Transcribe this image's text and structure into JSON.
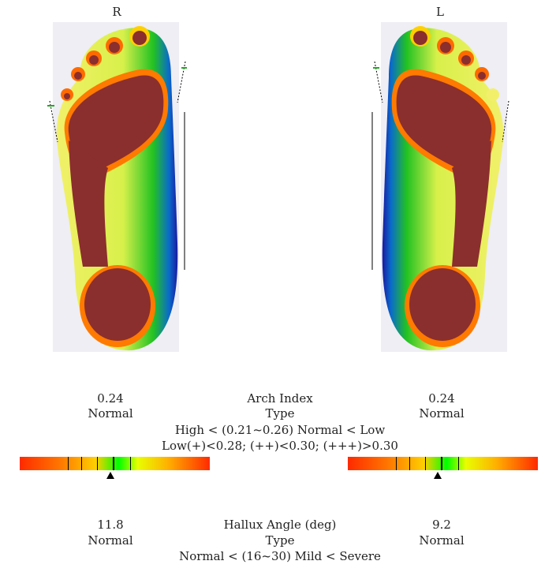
{
  "feet": {
    "right": {
      "label": "R"
    },
    "left": {
      "label": "L"
    }
  },
  "arch_index": {
    "right_value": "0.24",
    "right_type": "Normal",
    "left_value": "0.24",
    "left_type": "Normal",
    "title": "Arch Index",
    "type_label": "Type",
    "range_line1": "High < (0.21~0.26) Normal < Low",
    "range_line2": "Low(+)<0.28; (++)<0.30; (+++)>0.30",
    "right_marker": 0.24,
    "left_marker": 0.24
  },
  "hallux": {
    "right_value": "11.8",
    "right_type": "Normal",
    "left_value": "9.2",
    "left_type": "Normal",
    "title": "Hallux Angle (deg)",
    "type_label": "Type",
    "range_line": "Normal < (16~30) Mild < Severe"
  },
  "colors": {
    "pressure_high": "#8b2e2e",
    "pressure_mid": "#f2f06a",
    "pressure_low": "#22c222",
    "pressure_min": "#1a1acc"
  }
}
